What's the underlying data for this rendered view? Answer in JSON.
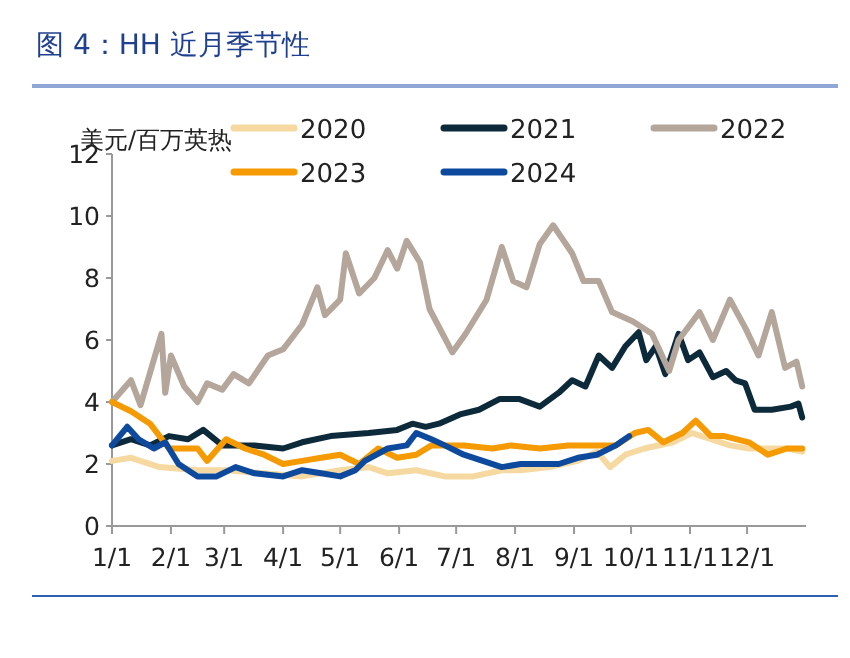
{
  "chart_data": {
    "type": "line",
    "title": "图 4：HH 近月季节性",
    "ylabel": "美元/百万英热",
    "xlim": [
      "--01-01",
      "--12-31"
    ],
    "xticks": [
      {
        "value": "--01-01",
        "label": "1/1"
      },
      {
        "value": "--02-01",
        "label": "2/1"
      },
      {
        "value": "--03-01",
        "label": "3/1"
      },
      {
        "value": "--04-01",
        "label": "4/1"
      },
      {
        "value": "--05-01",
        "label": "5/1"
      },
      {
        "value": "--06-01",
        "label": "6/1"
      },
      {
        "value": "--07-01",
        "label": "7/1"
      },
      {
        "value": "--08-01",
        "label": "8/1"
      },
      {
        "value": "--09-01",
        "label": "9/1"
      },
      {
        "value": "--10-01",
        "label": "10/1"
      },
      {
        "value": "--11-01",
        "label": "11/1"
      },
      {
        "value": "--12-01",
        "label": "12/1"
      }
    ],
    "ylim": [
      0,
      12
    ],
    "yticks": [
      0,
      2,
      4,
      6,
      8,
      10,
      12
    ],
    "grid": false,
    "legend": "top",
    "series": [
      {
        "name": "2020",
        "color": "#f5d9a0",
        "x": [
          "--01-01",
          "--01-11",
          "--01-26",
          "--02-15",
          "--03-02",
          "--03-22",
          "--04-11",
          "--05-01",
          "--05-16",
          "--05-26",
          "--06-10",
          "--06-25",
          "--07-10",
          "--07-25",
          "--08-04",
          "--08-19",
          "--09-03",
          "--09-13",
          "--09-20",
          "--09-28",
          "--10-08",
          "--10-23",
          "--11-02",
          "--11-12",
          "--11-22",
          "--12-02",
          "--12-12",
          "--12-22",
          "--12-30"
        ],
        "values": [
          2.1,
          2.2,
          1.9,
          1.8,
          1.8,
          1.7,
          1.6,
          1.8,
          1.9,
          1.7,
          1.8,
          1.6,
          1.6,
          1.8,
          1.8,
          1.9,
          2.1,
          2.4,
          1.9,
          2.3,
          2.5,
          2.7,
          3.0,
          2.8,
          2.6,
          2.5,
          2.5,
          2.5,
          2.4
        ]
      },
      {
        "name": "2021",
        "color": "#0d2a3a",
        "x": [
          "--01-01",
          "--01-11",
          "--01-21",
          "--01-31",
          "--02-10",
          "--02-18",
          "--02-28",
          "--03-17",
          "--04-01",
          "--04-11",
          "--04-26",
          "--05-16",
          "--05-31",
          "--06-08",
          "--06-15",
          "--06-22",
          "--07-03",
          "--07-13",
          "--07-24",
          "--08-03",
          "--08-14",
          "--08-24",
          "--08-31",
          "--09-07",
          "--09-14",
          "--09-21",
          "--09-28",
          "--10-05",
          "--10-09",
          "--10-14",
          "--10-19",
          "--10-26",
          "--10-31",
          "--11-06",
          "--11-13",
          "--11-20",
          "--11-25",
          "--11-30",
          "--12-05",
          "--12-14",
          "--12-24",
          "--12-28",
          "--12-30"
        ],
        "values": [
          2.6,
          2.8,
          2.6,
          2.9,
          2.8,
          3.1,
          2.6,
          2.6,
          2.5,
          2.7,
          2.9,
          3.0,
          3.1,
          3.3,
          3.2,
          3.3,
          3.6,
          3.75,
          4.1,
          4.1,
          3.85,
          4.3,
          4.7,
          4.5,
          5.5,
          5.1,
          5.8,
          6.25,
          5.35,
          5.8,
          4.9,
          6.2,
          5.35,
          5.6,
          4.8,
          5.0,
          4.7,
          4.6,
          3.75,
          3.75,
          3.85,
          3.95,
          3.5
        ]
      },
      {
        "name": "2022",
        "color": "#b4a69a",
        "x": [
          "--01-01",
          "--01-11",
          "--01-16",
          "--01-27",
          "--01-29",
          "--02-01",
          "--02-08",
          "--02-15",
          "--02-20",
          "--02-28",
          "--03-06",
          "--03-14",
          "--03-24",
          "--04-01",
          "--04-11",
          "--04-19",
          "--04-23",
          "--05-01",
          "--05-04",
          "--05-11",
          "--05-19",
          "--05-26",
          "--05-31",
          "--06-05",
          "--06-12",
          "--06-17",
          "--06-29",
          "--07-06",
          "--07-17",
          "--07-25",
          "--07-31",
          "--08-07",
          "--08-14",
          "--08-21",
          "--08-31",
          "--09-06",
          "--09-14",
          "--09-21",
          "--10-02",
          "--10-12",
          "--10-21",
          "--10-26",
          "--11-06",
          "--11-13",
          "--11-22",
          "--11-30",
          "--12-07",
          "--12-14",
          "--12-21",
          "--12-27",
          "--12-30"
        ],
        "values": [
          4.0,
          4.7,
          3.9,
          6.2,
          4.3,
          5.5,
          4.5,
          4.0,
          4.6,
          4.4,
          4.9,
          4.6,
          5.5,
          5.7,
          6.5,
          7.7,
          6.8,
          7.3,
          8.8,
          7.5,
          8.0,
          8.9,
          8.3,
          9.2,
          8.5,
          7.0,
          5.6,
          6.2,
          7.3,
          9.0,
          7.9,
          7.7,
          9.1,
          9.7,
          8.8,
          7.9,
          7.9,
          6.9,
          6.6,
          6.2,
          5.0,
          6.0,
          6.9,
          6.0,
          7.3,
          6.4,
          5.5,
          6.9,
          5.1,
          5.3,
          4.5
        ]
      },
      {
        "name": "2023",
        "color": "#f59a00",
        "x": [
          "--01-01",
          "--01-11",
          "--01-21",
          "--01-31",
          "--02-15",
          "--02-20",
          "--03-02",
          "--03-12",
          "--03-22",
          "--04-01",
          "--04-11",
          "--04-21",
          "--05-01",
          "--05-11",
          "--05-21",
          "--05-31",
          "--06-10",
          "--06-18",
          "--06-25",
          "--07-05",
          "--07-20",
          "--07-30",
          "--08-14",
          "--08-29",
          "--09-13",
          "--09-23",
          "--10-03",
          "--10-10",
          "--10-18",
          "--10-28",
          "--11-04",
          "--11-12",
          "--11-19",
          "--12-02",
          "--12-12",
          "--12-22",
          "--12-30"
        ],
        "values": [
          4.0,
          3.7,
          3.3,
          2.5,
          2.5,
          2.1,
          2.8,
          2.5,
          2.3,
          2.0,
          2.1,
          2.2,
          2.3,
          2.0,
          2.5,
          2.2,
          2.3,
          2.6,
          2.6,
          2.6,
          2.5,
          2.6,
          2.5,
          2.6,
          2.6,
          2.6,
          3.0,
          3.1,
          2.7,
          3.0,
          3.4,
          2.9,
          2.9,
          2.7,
          2.3,
          2.5,
          2.5
        ]
      },
      {
        "name": "2024",
        "color": "#0d4a9e",
        "x": [
          "--01-01",
          "--01-09",
          "--01-15",
          "--01-23",
          "--01-29",
          "--02-05",
          "--02-15",
          "--02-25",
          "--03-07",
          "--03-17",
          "--04-01",
          "--04-11",
          "--04-21",
          "--05-01",
          "--05-09",
          "--05-14",
          "--05-26",
          "--06-05",
          "--06-10",
          "--06-18",
          "--06-25",
          "--07-05",
          "--07-15",
          "--07-25",
          "--08-04",
          "--08-14",
          "--08-24",
          "--09-03",
          "--09-13",
          "--09-23",
          "--09-30"
        ],
        "values": [
          2.6,
          3.2,
          2.8,
          2.5,
          2.7,
          2.0,
          1.6,
          1.6,
          1.9,
          1.7,
          1.6,
          1.8,
          1.7,
          1.6,
          1.8,
          2.1,
          2.5,
          2.6,
          3.0,
          2.8,
          2.6,
          2.3,
          2.1,
          1.9,
          2.0,
          2.0,
          2.0,
          2.2,
          2.3,
          2.6,
          2.9
        ]
      }
    ]
  }
}
